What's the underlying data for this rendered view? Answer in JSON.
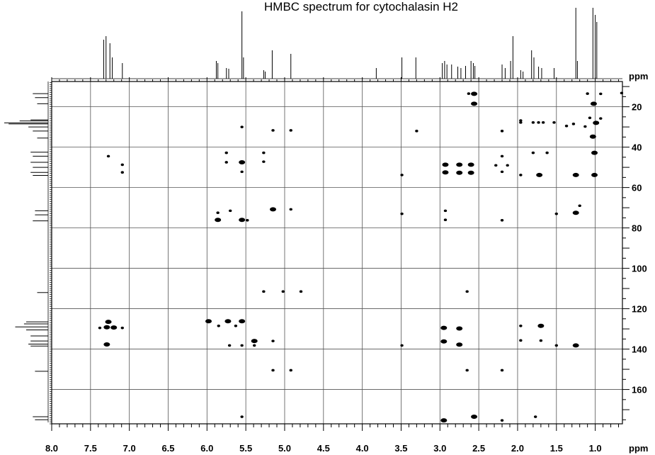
{
  "chart_data": {
    "type": "scatter",
    "title": "HMBC spectrum for cytochalasin H2",
    "x_unit_label": "ppm",
    "y_unit_label": "ppm",
    "x_axis": {
      "range": [
        8.0,
        0.65
      ],
      "reversed": true,
      "tick_labels": [
        "8.0",
        "7.5",
        "7.0",
        "6.5",
        "6.0",
        "5.5",
        "5.0",
        "4.5",
        "4.0",
        "3.5",
        "3.0",
        "2.5",
        "2.0",
        "1.5",
        "1.0"
      ]
    },
    "y_axis": {
      "range": [
        7.5,
        177
      ],
      "position": "right",
      "tick_labels": [
        "20",
        "40",
        "60",
        "80",
        "100",
        "120",
        "140",
        "160"
      ]
    },
    "grid": true,
    "proton_projection_peaks": [
      {
        "x": 7.33,
        "h": 0.55
      },
      {
        "x": 7.3,
        "h": 0.6
      },
      {
        "x": 7.25,
        "h": 0.5
      },
      {
        "x": 7.22,
        "h": 0.3
      },
      {
        "x": 7.09,
        "h": 0.22
      },
      {
        "x": 5.88,
        "h": 0.25
      },
      {
        "x": 5.86,
        "h": 0.22
      },
      {
        "x": 5.75,
        "h": 0.15
      },
      {
        "x": 5.72,
        "h": 0.14
      },
      {
        "x": 5.55,
        "h": 0.95
      },
      {
        "x": 5.53,
        "h": 0.3
      },
      {
        "x": 5.27,
        "h": 0.12
      },
      {
        "x": 5.25,
        "h": 0.1
      },
      {
        "x": 5.16,
        "h": 0.4
      },
      {
        "x": 4.92,
        "h": 0.35
      },
      {
        "x": 3.82,
        "h": 0.15
      },
      {
        "x": 3.49,
        "h": 0.3
      },
      {
        "x": 3.31,
        "h": 0.3
      },
      {
        "x": 2.97,
        "h": 0.22
      },
      {
        "x": 2.94,
        "h": 0.25
      },
      {
        "x": 2.91,
        "h": 0.2
      },
      {
        "x": 2.85,
        "h": 0.2
      },
      {
        "x": 2.77,
        "h": 0.17
      },
      {
        "x": 2.73,
        "h": 0.15
      },
      {
        "x": 2.67,
        "h": 0.18
      },
      {
        "x": 2.6,
        "h": 0.25
      },
      {
        "x": 2.57,
        "h": 0.22
      },
      {
        "x": 2.55,
        "h": 0.18
      },
      {
        "x": 2.2,
        "h": 0.2
      },
      {
        "x": 2.16,
        "h": 0.15
      },
      {
        "x": 2.09,
        "h": 0.25
      },
      {
        "x": 2.06,
        "h": 0.6
      },
      {
        "x": 1.96,
        "h": 0.12
      },
      {
        "x": 1.93,
        "h": 0.1
      },
      {
        "x": 1.82,
        "h": 0.4
      },
      {
        "x": 1.79,
        "h": 0.3
      },
      {
        "x": 1.73,
        "h": 0.17
      },
      {
        "x": 1.69,
        "h": 0.15
      },
      {
        "x": 1.53,
        "h": 0.15
      },
      {
        "x": 1.25,
        "h": 1.0
      },
      {
        "x": 1.23,
        "h": 0.25
      },
      {
        "x": 1.03,
        "h": 1.0
      },
      {
        "x": 1.0,
        "h": 0.9
      },
      {
        "x": 0.98,
        "h": 0.8
      }
    ],
    "carbon_projection_peaks": [
      {
        "y": 13.5,
        "h": 0.35
      },
      {
        "y": 15.5,
        "h": 0.3
      },
      {
        "y": 18.5,
        "h": 0.25
      },
      {
        "y": 26.5,
        "h": 0.4
      },
      {
        "y": 27.0,
        "h": 0.65
      },
      {
        "y": 28.0,
        "h": 1.0
      },
      {
        "y": 28.5,
        "h": 0.9
      },
      {
        "y": 30.0,
        "h": 0.45
      },
      {
        "y": 32.0,
        "h": 0.35
      },
      {
        "y": 35.5,
        "h": 0.25
      },
      {
        "y": 42.5,
        "h": 0.4
      },
      {
        "y": 44.5,
        "h": 0.35
      },
      {
        "y": 47.5,
        "h": 0.4
      },
      {
        "y": 50.0,
        "h": 0.35
      },
      {
        "y": 52.5,
        "h": 0.4
      },
      {
        "y": 54.0,
        "h": 0.35
      },
      {
        "y": 71.5,
        "h": 0.3
      },
      {
        "y": 73.5,
        "h": 0.3
      },
      {
        "y": 76.5,
        "h": 0.35
      },
      {
        "y": 112.0,
        "h": 0.25
      },
      {
        "y": 126.5,
        "h": 0.5
      },
      {
        "y": 127.5,
        "h": 0.55
      },
      {
        "y": 129.0,
        "h": 0.75
      },
      {
        "y": 130.5,
        "h": 0.5
      },
      {
        "y": 133.5,
        "h": 0.4
      },
      {
        "y": 136.0,
        "h": 0.4
      },
      {
        "y": 137.5,
        "h": 0.45
      },
      {
        "y": 138.5,
        "h": 0.4
      },
      {
        "y": 151.0,
        "h": 0.3
      },
      {
        "y": 173.5,
        "h": 0.35
      },
      {
        "y": 175.0,
        "h": 0.3
      }
    ],
    "cross_peaks": [
      {
        "x": 2.63,
        "y": 13.5,
        "s": 1
      },
      {
        "x": 2.56,
        "y": 13.6,
        "s": 2
      },
      {
        "x": 2.56,
        "y": 18.5,
        "s": 2
      },
      {
        "x": 1.1,
        "y": 13.5,
        "s": 1
      },
      {
        "x": 0.93,
        "y": 13.6,
        "s": 1
      },
      {
        "x": 0.66,
        "y": 13.2,
        "s": 1
      },
      {
        "x": 1.02,
        "y": 18.5,
        "s": 2
      },
      {
        "x": 1.07,
        "y": 25.5,
        "s": 1
      },
      {
        "x": 0.93,
        "y": 25.8,
        "s": 1
      },
      {
        "x": 0.99,
        "y": 28.0,
        "s": 2
      },
      {
        "x": 1.03,
        "y": 34.8,
        "s": 2
      },
      {
        "x": 1.96,
        "y": 26.8,
        "s": 1
      },
      {
        "x": 1.96,
        "y": 27.8,
        "s": 1
      },
      {
        "x": 1.8,
        "y": 27.8,
        "s": 1
      },
      {
        "x": 1.73,
        "y": 27.8,
        "s": 1
      },
      {
        "x": 1.67,
        "y": 27.8,
        "s": 1
      },
      {
        "x": 1.53,
        "y": 27.8,
        "s": 1
      },
      {
        "x": 1.37,
        "y": 29.5,
        "s": 1
      },
      {
        "x": 1.28,
        "y": 28.5,
        "s": 1
      },
      {
        "x": 1.13,
        "y": 29.8,
        "s": 1
      },
      {
        "x": 5.55,
        "y": 30.0,
        "s": 1
      },
      {
        "x": 5.15,
        "y": 31.7,
        "s": 1
      },
      {
        "x": 4.92,
        "y": 31.7,
        "s": 1
      },
      {
        "x": 3.3,
        "y": 32.0,
        "s": 1
      },
      {
        "x": 2.2,
        "y": 32.0,
        "s": 1
      },
      {
        "x": 7.27,
        "y": 44.5,
        "s": 1
      },
      {
        "x": 7.09,
        "y": 48.7,
        "s": 1
      },
      {
        "x": 7.09,
        "y": 52.5,
        "s": 1
      },
      {
        "x": 5.75,
        "y": 42.8,
        "s": 1
      },
      {
        "x": 5.75,
        "y": 47.5,
        "s": 1
      },
      {
        "x": 5.55,
        "y": 47.5,
        "s": 2
      },
      {
        "x": 5.55,
        "y": 52.2,
        "s": 1
      },
      {
        "x": 5.27,
        "y": 42.8,
        "s": 1
      },
      {
        "x": 5.27,
        "y": 47.2,
        "s": 1
      },
      {
        "x": 3.49,
        "y": 53.8,
        "s": 1
      },
      {
        "x": 2.93,
        "y": 48.7,
        "s": 2
      },
      {
        "x": 2.93,
        "y": 52.5,
        "s": 2
      },
      {
        "x": 2.75,
        "y": 48.7,
        "s": 2
      },
      {
        "x": 2.75,
        "y": 52.7,
        "s": 2
      },
      {
        "x": 2.6,
        "y": 48.7,
        "s": 2
      },
      {
        "x": 2.6,
        "y": 52.7,
        "s": 2
      },
      {
        "x": 2.28,
        "y": 49.0,
        "s": 1
      },
      {
        "x": 2.2,
        "y": 44.5,
        "s": 1
      },
      {
        "x": 2.2,
        "y": 52.2,
        "s": 1
      },
      {
        "x": 2.13,
        "y": 49.0,
        "s": 1
      },
      {
        "x": 1.96,
        "y": 53.8,
        "s": 1
      },
      {
        "x": 1.8,
        "y": 42.8,
        "s": 1
      },
      {
        "x": 1.72,
        "y": 53.8,
        "s": 2
      },
      {
        "x": 1.62,
        "y": 42.8,
        "s": 1
      },
      {
        "x": 1.25,
        "y": 53.8,
        "s": 2
      },
      {
        "x": 1.01,
        "y": 42.8,
        "s": 2
      },
      {
        "x": 1.01,
        "y": 53.8,
        "s": 2
      },
      {
        "x": 5.86,
        "y": 72.5,
        "s": 1
      },
      {
        "x": 5.86,
        "y": 76.0,
        "s": 2
      },
      {
        "x": 5.7,
        "y": 71.5,
        "s": 1
      },
      {
        "x": 5.55,
        "y": 76.0,
        "s": 2
      },
      {
        "x": 5.48,
        "y": 76.2,
        "s": 1
      },
      {
        "x": 5.15,
        "y": 70.8,
        "s": 2
      },
      {
        "x": 4.92,
        "y": 70.8,
        "s": 1
      },
      {
        "x": 3.49,
        "y": 73.0,
        "s": 1
      },
      {
        "x": 2.93,
        "y": 71.5,
        "s": 1
      },
      {
        "x": 2.93,
        "y": 76.0,
        "s": 1
      },
      {
        "x": 2.2,
        "y": 76.2,
        "s": 1
      },
      {
        "x": 1.25,
        "y": 72.5,
        "s": 2
      },
      {
        "x": 1.2,
        "y": 69.0,
        "s": 1
      },
      {
        "x": 1.5,
        "y": 73.0,
        "s": 1
      },
      {
        "x": 5.27,
        "y": 111.5,
        "s": 1
      },
      {
        "x": 5.02,
        "y": 111.5,
        "s": 1
      },
      {
        "x": 4.79,
        "y": 111.5,
        "s": 1
      },
      {
        "x": 2.65,
        "y": 111.5,
        "s": 1
      },
      {
        "x": 7.38,
        "y": 129.5,
        "s": 1
      },
      {
        "x": 7.27,
        "y": 126.5,
        "s": 2
      },
      {
        "x": 7.29,
        "y": 129.2,
        "s": 2
      },
      {
        "x": 7.2,
        "y": 129.3,
        "s": 2
      },
      {
        "x": 7.09,
        "y": 129.5,
        "s": 1
      },
      {
        "x": 7.29,
        "y": 137.7,
        "s": 2
      },
      {
        "x": 5.98,
        "y": 126.2,
        "s": 2
      },
      {
        "x": 5.85,
        "y": 128.5,
        "s": 1
      },
      {
        "x": 5.73,
        "y": 126.2,
        "s": 2
      },
      {
        "x": 5.63,
        "y": 128.5,
        "s": 1
      },
      {
        "x": 5.55,
        "y": 126.2,
        "s": 2
      },
      {
        "x": 5.71,
        "y": 138.2,
        "s": 1
      },
      {
        "x": 5.55,
        "y": 138.2,
        "s": 1
      },
      {
        "x": 5.39,
        "y": 136.0,
        "s": 2
      },
      {
        "x": 5.39,
        "y": 138.2,
        "s": 1
      },
      {
        "x": 5.15,
        "y": 136.0,
        "s": 1
      },
      {
        "x": 3.49,
        "y": 138.2,
        "s": 1
      },
      {
        "x": 2.95,
        "y": 129.5,
        "s": 2
      },
      {
        "x": 2.95,
        "y": 136.2,
        "s": 2
      },
      {
        "x": 2.75,
        "y": 129.8,
        "s": 2
      },
      {
        "x": 2.75,
        "y": 137.8,
        "s": 2
      },
      {
        "x": 1.96,
        "y": 128.5,
        "s": 1
      },
      {
        "x": 1.96,
        "y": 135.7,
        "s": 1
      },
      {
        "x": 1.7,
        "y": 128.5,
        "s": 2
      },
      {
        "x": 1.7,
        "y": 135.8,
        "s": 1
      },
      {
        "x": 1.5,
        "y": 138.2,
        "s": 1
      },
      {
        "x": 1.25,
        "y": 138.2,
        "s": 2
      },
      {
        "x": 5.15,
        "y": 150.5,
        "s": 1
      },
      {
        "x": 4.92,
        "y": 150.5,
        "s": 1
      },
      {
        "x": 2.65,
        "y": 150.5,
        "s": 1
      },
      {
        "x": 2.2,
        "y": 150.5,
        "s": 1
      },
      {
        "x": 5.55,
        "y": 173.5,
        "s": 1
      },
      {
        "x": 2.95,
        "y": 175.3,
        "s": 2
      },
      {
        "x": 2.56,
        "y": 173.5,
        "s": 2
      },
      {
        "x": 2.2,
        "y": 175.3,
        "s": 1
      },
      {
        "x": 1.77,
        "y": 173.5,
        "s": 1
      }
    ]
  }
}
